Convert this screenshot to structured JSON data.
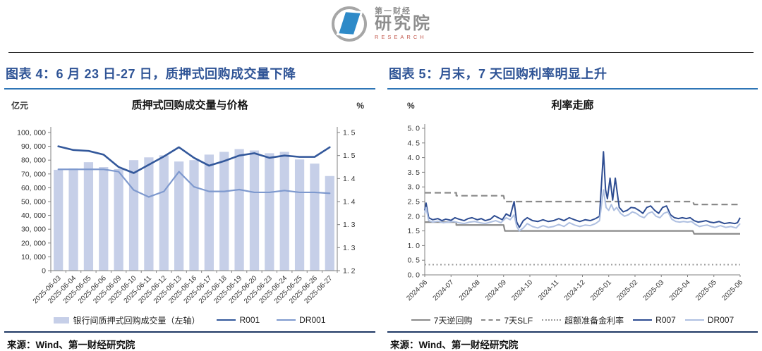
{
  "page": {
    "logo": {
      "line1": "第一财经",
      "line2": "研究院",
      "line3": "RESEARCH"
    }
  },
  "figure4": {
    "heading": "图表 4：6 月 23 日-27 日，质押式回购成交量下降",
    "chart_title": "质押式回购成交量与价格",
    "left_unit": "亿元",
    "right_unit": "%",
    "legend": [
      {
        "label": "银行间质押式回购成交量（左轴）",
        "swatch": "bar",
        "color": "#c6cfe8",
        "style": "solid"
      },
      {
        "label": "R001",
        "swatch": "line",
        "color": "#33589b",
        "style": "solid"
      },
      {
        "label": "DR001",
        "swatch": "line",
        "color": "#7e99ce",
        "style": "solid"
      }
    ],
    "source": "来源：Wind、第一财经研究院"
  },
  "figure5": {
    "heading": "图表 5：月末，7 天回购利率明显上升",
    "chart_title": "利率走廊",
    "left_unit": "%",
    "right_unit": "",
    "legend": [
      {
        "label": "7天逆回购",
        "swatch": "line",
        "color": "#8a8a8a",
        "style": "solid"
      },
      {
        "label": "7天SLF",
        "swatch": "line",
        "color": "#8a8a8a",
        "style": "dashed"
      },
      {
        "label": "超额准备金利率",
        "swatch": "line",
        "color": "#9a9a9a",
        "style": "dotted"
      },
      {
        "label": "R007",
        "swatch": "line",
        "color": "#2e4d92",
        "style": "solid"
      },
      {
        "label": "DR007",
        "swatch": "line",
        "color": "#afc0e1",
        "style": "solid"
      }
    ],
    "source": "来源：Wind、第一财经研究院"
  },
  "chart_data": [
    {
      "type": "bar",
      "title": "质押式回购成交量与价格",
      "categories": [
        "2025-06-03",
        "2025-06-04",
        "2025-06-05",
        "2025-06-06",
        "2025-06-09",
        "2025-06-10",
        "2025-06-11",
        "2025-06-12",
        "2025-06-13",
        "2025-06-16",
        "2025-06-17",
        "2025-06-18",
        "2025-06-19",
        "2025-06-20",
        "2025-06-23",
        "2025-06-24",
        "2025-06-25",
        "2025-06-26",
        "2025-06-27"
      ],
      "bar_series": {
        "name": "银行间质押式回购成交量（左轴）",
        "axis": "left",
        "unit": "亿元",
        "color": "#c6cfe8",
        "values": [
          73000,
          74000,
          78500,
          75000,
          73500,
          80000,
          82000,
          83500,
          79000,
          80000,
          84000,
          86000,
          88000,
          87000,
          85000,
          86000,
          80500,
          77500,
          68500
        ]
      },
      "line_series": [
        {
          "name": "R001",
          "axis": "right",
          "unit": "%",
          "color": "#33589b",
          "width": 2.6,
          "values": [
            1.47,
            1.462,
            1.46,
            1.452,
            1.425,
            1.412,
            1.43,
            1.448,
            1.468,
            1.445,
            1.428,
            1.438,
            1.45,
            1.455,
            1.445,
            1.45,
            1.447,
            1.447,
            1.468
          ]
        },
        {
          "name": "DR001",
          "axis": "right",
          "unit": "%",
          "color": "#7e99ce",
          "width": 2.2,
          "values": [
            1.42,
            1.42,
            1.42,
            1.42,
            1.415,
            1.375,
            1.36,
            1.372,
            1.415,
            1.382,
            1.372,
            1.372,
            1.376,
            1.37,
            1.37,
            1.374,
            1.37,
            1.37,
            1.368
          ]
        }
      ],
      "left_axis": {
        "min": 0,
        "max": 100000,
        "tick_labels": [
          "0",
          "10, 000",
          "20, 000",
          "30, 000",
          "40, 000",
          "50, 000",
          "60, 000",
          "70, 000",
          "80, 000",
          "90, 000",
          "100, 000"
        ]
      },
      "right_axis": {
        "min": 1.2,
        "max": 1.5,
        "tick_labels": [
          "1. 2",
          "1. 3",
          "1. 3",
          "1. 4",
          "1. 4",
          "1. 5",
          "1. 5"
        ]
      },
      "grid": false,
      "legend_position": "bottom"
    },
    {
      "type": "line",
      "title": "利率走廊",
      "x_tick_labels": [
        "2024-06",
        "2024-07",
        "2024-08",
        "2024-09",
        "2024-10",
        "2024-11",
        "2024-12",
        "2025-01",
        "2025-02",
        "2025-03",
        "2025-04",
        "2025-05",
        "2025-06"
      ],
      "x_range": [
        0,
        12
      ],
      "y_axis": {
        "min": 0,
        "max": 5,
        "step": 0.5,
        "unit": "%",
        "tick_labels": [
          "0. 0",
          "0. 5",
          "1. 0",
          "1. 5",
          "2. 0",
          "2. 5",
          "3. 0",
          "3. 5",
          "4. 0",
          "4. 5",
          "5. 0"
        ]
      },
      "series": [
        {
          "name": "7天逆回购",
          "color": "#8a8a8a",
          "style": "solid",
          "width": 2.2,
          "points": [
            [
              0,
              1.8
            ],
            [
              1.2,
              1.8
            ],
            [
              1.2,
              1.7
            ],
            [
              3.0,
              1.7
            ],
            [
              3.05,
              1.5
            ],
            [
              10.2,
              1.5
            ],
            [
              10.25,
              1.4
            ],
            [
              12,
              1.4
            ]
          ]
        },
        {
          "name": "7天SLF",
          "color": "#8a8a8a",
          "style": "dashed",
          "width": 2.2,
          "points": [
            [
              0,
              2.8
            ],
            [
              1.2,
              2.8
            ],
            [
              1.2,
              2.7
            ],
            [
              3.0,
              2.7
            ],
            [
              3.05,
              2.5
            ],
            [
              10.2,
              2.5
            ],
            [
              10.25,
              2.4
            ],
            [
              12,
              2.4
            ]
          ]
        },
        {
          "name": "超额准备金利率",
          "color": "#9a9a9a",
          "style": "dotted",
          "width": 2,
          "points": [
            [
              0,
              0.35
            ],
            [
              12,
              0.35
            ]
          ]
        },
        {
          "name": "R007",
          "color": "#2e4d92",
          "style": "solid",
          "width": 2,
          "points": [
            [
              0,
              2.2
            ],
            [
              0.05,
              2.45
            ],
            [
              0.15,
              1.95
            ],
            [
              0.3,
              1.88
            ],
            [
              0.5,
              1.92
            ],
            [
              0.65,
              1.85
            ],
            [
              0.8,
              1.9
            ],
            [
              1.0,
              1.86
            ],
            [
              1.15,
              1.95
            ],
            [
              1.3,
              1.9
            ],
            [
              1.5,
              1.85
            ],
            [
              1.65,
              1.92
            ],
            [
              1.8,
              1.95
            ],
            [
              2.0,
              1.88
            ],
            [
              2.15,
              1.92
            ],
            [
              2.3,
              1.85
            ],
            [
              2.5,
              1.9
            ],
            [
              2.65,
              2.02
            ],
            [
              2.8,
              1.95
            ],
            [
              2.95,
              1.88
            ],
            [
              3.1,
              2.08
            ],
            [
              3.25,
              2.0
            ],
            [
              3.4,
              2.5
            ],
            [
              3.5,
              1.8
            ],
            [
              3.6,
              1.62
            ],
            [
              3.75,
              1.85
            ],
            [
              3.9,
              1.95
            ],
            [
              4.1,
              1.85
            ],
            [
              4.3,
              1.82
            ],
            [
              4.5,
              1.88
            ],
            [
              4.7,
              1.82
            ],
            [
              4.9,
              1.85
            ],
            [
              5.1,
              1.92
            ],
            [
              5.3,
              1.85
            ],
            [
              5.5,
              1.95
            ],
            [
              5.7,
              1.88
            ],
            [
              5.9,
              1.82
            ],
            [
              6.1,
              1.88
            ],
            [
              6.3,
              1.85
            ],
            [
              6.5,
              1.92
            ],
            [
              6.65,
              2.0
            ],
            [
              6.8,
              4.2
            ],
            [
              6.88,
              2.9
            ],
            [
              6.95,
              2.6
            ],
            [
              7.05,
              3.3
            ],
            [
              7.15,
              2.55
            ],
            [
              7.25,
              3.3
            ],
            [
              7.4,
              2.3
            ],
            [
              7.55,
              2.15
            ],
            [
              7.7,
              2.2
            ],
            [
              7.85,
              2.3
            ],
            [
              8.0,
              2.28
            ],
            [
              8.15,
              2.2
            ],
            [
              8.3,
              2.1
            ],
            [
              8.45,
              2.3
            ],
            [
              8.6,
              2.35
            ],
            [
              8.75,
              2.2
            ],
            [
              8.9,
              2.1
            ],
            [
              9.05,
              2.3
            ],
            [
              9.2,
              2.35
            ],
            [
              9.35,
              2.05
            ],
            [
              9.5,
              1.95
            ],
            [
              9.65,
              1.92
            ],
            [
              9.8,
              1.95
            ],
            [
              9.95,
              1.92
            ],
            [
              10.1,
              1.95
            ],
            [
              10.25,
              1.85
            ],
            [
              10.4,
              1.8
            ],
            [
              10.55,
              1.82
            ],
            [
              10.7,
              1.85
            ],
            [
              10.85,
              1.8
            ],
            [
              11.0,
              1.78
            ],
            [
              11.2,
              1.82
            ],
            [
              11.4,
              1.75
            ],
            [
              11.6,
              1.78
            ],
            [
              11.8,
              1.75
            ],
            [
              11.9,
              1.78
            ],
            [
              12,
              1.95
            ]
          ]
        },
        {
          "name": "DR007",
          "color": "#afc0e1",
          "style": "solid",
          "width": 2,
          "points": [
            [
              0,
              2.1
            ],
            [
              0.05,
              2.3
            ],
            [
              0.15,
              1.85
            ],
            [
              0.3,
              1.8
            ],
            [
              0.5,
              1.83
            ],
            [
              0.7,
              1.78
            ],
            [
              0.9,
              1.8
            ],
            [
              1.1,
              1.82
            ],
            [
              1.3,
              1.78
            ],
            [
              1.5,
              1.75
            ],
            [
              1.7,
              1.8
            ],
            [
              1.9,
              1.82
            ],
            [
              2.1,
              1.78
            ],
            [
              2.3,
              1.75
            ],
            [
              2.5,
              1.8
            ],
            [
              2.7,
              1.85
            ],
            [
              2.9,
              1.78
            ],
            [
              3.1,
              1.95
            ],
            [
              3.25,
              1.88
            ],
            [
              3.4,
              2.05
            ],
            [
              3.5,
              1.65
            ],
            [
              3.6,
              1.5
            ],
            [
              3.75,
              1.6
            ],
            [
              3.9,
              1.75
            ],
            [
              4.1,
              1.65
            ],
            [
              4.3,
              1.6
            ],
            [
              4.5,
              1.68
            ],
            [
              4.7,
              1.62
            ],
            [
              4.9,
              1.65
            ],
            [
              5.1,
              1.72
            ],
            [
              5.3,
              1.65
            ],
            [
              5.5,
              1.78
            ],
            [
              5.7,
              1.7
            ],
            [
              5.9,
              1.65
            ],
            [
              6.1,
              1.7
            ],
            [
              6.3,
              1.68
            ],
            [
              6.5,
              1.75
            ],
            [
              6.65,
              1.85
            ],
            [
              6.8,
              2.9
            ],
            [
              6.9,
              2.3
            ],
            [
              7.0,
              2.2
            ],
            [
              7.1,
              2.4
            ],
            [
              7.2,
              2.2
            ],
            [
              7.3,
              2.3
            ],
            [
              7.45,
              2.1
            ],
            [
              7.6,
              2.0
            ],
            [
              7.75,
              2.05
            ],
            [
              7.9,
              2.15
            ],
            [
              8.05,
              2.1
            ],
            [
              8.2,
              2.0
            ],
            [
              8.35,
              1.95
            ],
            [
              8.5,
              2.1
            ],
            [
              8.65,
              2.15
            ],
            [
              8.8,
              2.0
            ],
            [
              8.95,
              1.95
            ],
            [
              9.1,
              2.1
            ],
            [
              9.25,
              2.15
            ],
            [
              9.4,
              1.9
            ],
            [
              9.55,
              1.82
            ],
            [
              9.7,
              1.8
            ],
            [
              9.85,
              1.82
            ],
            [
              10.0,
              1.8
            ],
            [
              10.15,
              1.82
            ],
            [
              10.3,
              1.72
            ],
            [
              10.45,
              1.65
            ],
            [
              10.6,
              1.68
            ],
            [
              10.75,
              1.7
            ],
            [
              10.9,
              1.65
            ],
            [
              11.05,
              1.62
            ],
            [
              11.25,
              1.68
            ],
            [
              11.45,
              1.62
            ],
            [
              11.65,
              1.65
            ],
            [
              11.85,
              1.6
            ],
            [
              12,
              1.75
            ]
          ]
        }
      ],
      "grid": false,
      "legend_position": "bottom"
    }
  ]
}
